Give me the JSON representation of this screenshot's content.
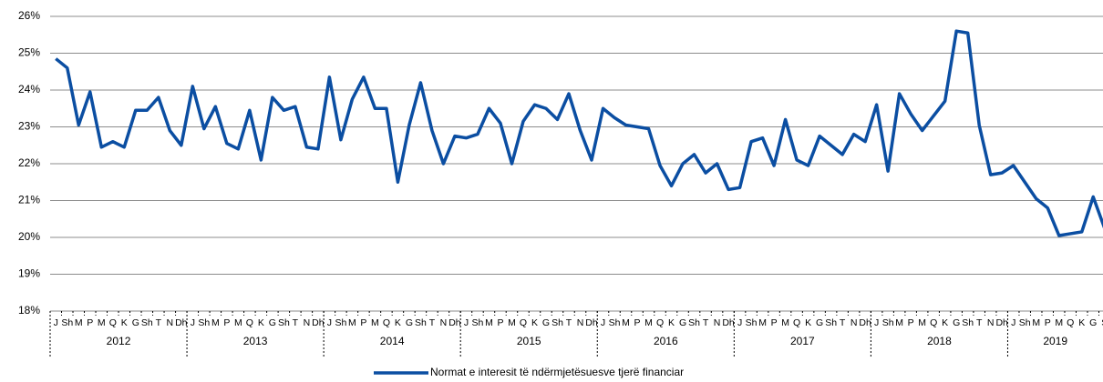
{
  "chart_data": {
    "type": "line",
    "categories": [
      "J",
      "Sh",
      "M",
      "P",
      "M",
      "Q",
      "K",
      "G",
      "Sh",
      "T",
      "N",
      "Dh",
      "J",
      "Sh",
      "M",
      "P",
      "M",
      "Q",
      "K",
      "G",
      "Sh",
      "T",
      "N",
      "Dh",
      "J",
      "Sh",
      "M",
      "P",
      "M",
      "Q",
      "K",
      "G",
      "Sh",
      "T",
      "N",
      "Dh",
      "J",
      "Sh",
      "M",
      "P",
      "M",
      "Q",
      "K",
      "G",
      "Sh",
      "T",
      "N",
      "Dh",
      "J",
      "Sh",
      "M",
      "P",
      "M",
      "Q",
      "K",
      "G",
      "Sh",
      "T",
      "N",
      "Dh",
      "J",
      "Sh",
      "M",
      "P",
      "M",
      "Q",
      "K",
      "G",
      "Sh",
      "T",
      "N",
      "Dh",
      "J",
      "Sh",
      "M",
      "P",
      "M",
      "Q",
      "K",
      "G",
      "Sh",
      "T",
      "N",
      "Dh",
      "J",
      "Sh",
      "M",
      "P",
      "M",
      "Q",
      "K",
      "G",
      "S"
    ],
    "years": [
      "2012",
      "2013",
      "2014",
      "2015",
      "2016",
      "2017",
      "2018",
      "2019"
    ],
    "series": [
      {
        "name": "Normat e interesit të ndërmjetësuesve tjerë financiar",
        "color": "#0b4ea2",
        "values": [
          24.85,
          24.6,
          23.05,
          23.95,
          22.45,
          22.6,
          22.45,
          23.45,
          23.45,
          23.8,
          22.9,
          22.5,
          24.1,
          22.95,
          23.55,
          22.55,
          22.4,
          23.45,
          22.1,
          23.8,
          23.45,
          23.55,
          22.45,
          22.4,
          24.35,
          22.65,
          23.75,
          24.35,
          23.5,
          23.5,
          21.5,
          23.05,
          24.2,
          22.9,
          22.0,
          22.75,
          22.7,
          22.8,
          23.5,
          23.1,
          22.0,
          23.15,
          23.6,
          23.5,
          23.2,
          23.9,
          22.9,
          22.1,
          23.5,
          23.25,
          23.05,
          23.0,
          22.95,
          21.95,
          21.4,
          22.0,
          22.25,
          21.75,
          22.0,
          21.3,
          21.35,
          22.6,
          22.7,
          21.95,
          23.2,
          22.1,
          21.95,
          22.75,
          22.5,
          22.25,
          22.8,
          22.6,
          23.6,
          21.8,
          23.9,
          23.35,
          22.9,
          23.3,
          23.7,
          25.6,
          25.55,
          23.05,
          21.7,
          21.75,
          21.95,
          21.5,
          21.05,
          20.8,
          20.05,
          20.1,
          20.15,
          21.1,
          20.25
        ]
      }
    ],
    "ylim": [
      18,
      26
    ],
    "yticks": [
      {
        "value": 18,
        "label": "18%"
      },
      {
        "value": 19,
        "label": "19%"
      },
      {
        "value": 20,
        "label": "20%"
      },
      {
        "value": 21,
        "label": "21%"
      },
      {
        "value": 22,
        "label": "22%"
      },
      {
        "value": 23,
        "label": "23%"
      },
      {
        "value": 24,
        "label": "24%"
      },
      {
        "value": 25,
        "label": "25%"
      },
      {
        "value": 26,
        "label": "26%"
      }
    ],
    "grid": true,
    "legend": "bottom"
  }
}
